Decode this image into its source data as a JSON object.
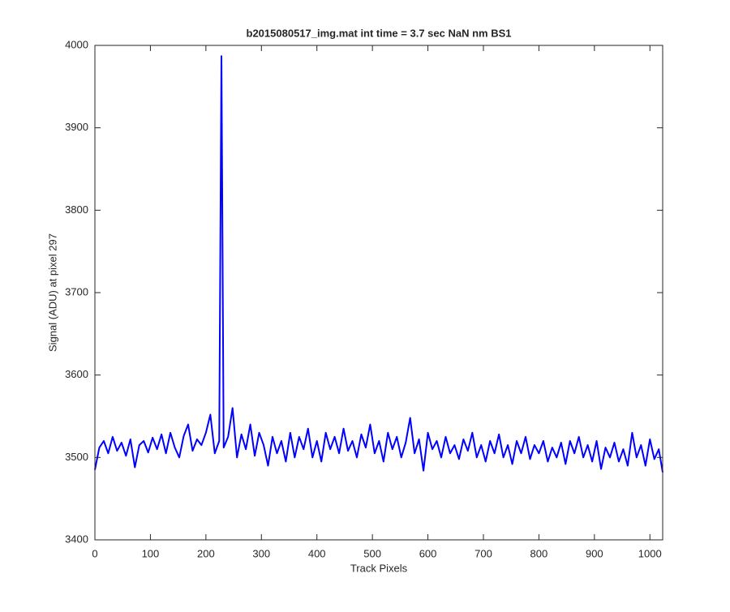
{
  "chart_data": {
    "type": "line",
    "title": "b2015080517_img.mat int time = 3.7 sec  NaN nm BS1",
    "xlabel": "Track Pixels",
    "ylabel": "Signal (ADU) at pixel 297",
    "xlim": [
      0,
      1023
    ],
    "ylim": [
      3400,
      4000
    ],
    "xticks": [
      0,
      100,
      200,
      300,
      400,
      500,
      600,
      700,
      800,
      900,
      1000
    ],
    "yticks": [
      3400,
      3500,
      3600,
      3700,
      3800,
      3900,
      4000
    ],
    "series": [
      {
        "color": "#0000ff",
        "x": [
          0,
          8,
          16,
          24,
          32,
          40,
          48,
          56,
          64,
          72,
          80,
          88,
          96,
          104,
          112,
          120,
          128,
          136,
          144,
          152,
          160,
          168,
          176,
          184,
          192,
          200,
          208,
          216,
          224,
          228,
          232,
          240,
          248,
          256,
          264,
          272,
          280,
          288,
          296,
          304,
          312,
          320,
          328,
          336,
          344,
          352,
          360,
          368,
          376,
          384,
          392,
          400,
          408,
          416,
          424,
          432,
          440,
          448,
          456,
          464,
          472,
          480,
          488,
          496,
          504,
          512,
          520,
          528,
          536,
          544,
          552,
          560,
          568,
          576,
          584,
          592,
          600,
          608,
          616,
          624,
          632,
          640,
          648,
          656,
          664,
          672,
          680,
          688,
          696,
          704,
          712,
          720,
          728,
          736,
          744,
          752,
          760,
          768,
          776,
          784,
          792,
          800,
          808,
          816,
          824,
          832,
          840,
          848,
          856,
          864,
          872,
          880,
          888,
          896,
          904,
          912,
          920,
          928,
          936,
          944,
          952,
          960,
          968,
          976,
          984,
          992,
          1000,
          1008,
          1016,
          1023
        ],
        "values": [
          3485,
          3512,
          3520,
          3505,
          3525,
          3508,
          3518,
          3502,
          3522,
          3488,
          3515,
          3520,
          3506,
          3524,
          3510,
          3528,
          3505,
          3530,
          3512,
          3500,
          3526,
          3540,
          3508,
          3522,
          3515,
          3530,
          3552,
          3505,
          3520,
          3987,
          3512,
          3525,
          3560,
          3500,
          3528,
          3510,
          3540,
          3502,
          3530,
          3515,
          3490,
          3525,
          3505,
          3520,
          3495,
          3530,
          3500,
          3525,
          3510,
          3535,
          3500,
          3520,
          3495,
          3530,
          3510,
          3525,
          3505,
          3535,
          3508,
          3520,
          3500,
          3528,
          3512,
          3540,
          3505,
          3520,
          3495,
          3530,
          3510,
          3525,
          3500,
          3518,
          3548,
          3505,
          3522,
          3484,
          3530,
          3510,
          3520,
          3500,
          3525,
          3505,
          3515,
          3498,
          3522,
          3508,
          3530,
          3500,
          3515,
          3495,
          3520,
          3505,
          3528,
          3500,
          3515,
          3492,
          3520,
          3505,
          3525,
          3498,
          3515,
          3505,
          3520,
          3495,
          3512,
          3500,
          3518,
          3492,
          3520,
          3505,
          3525,
          3500,
          3515,
          3495,
          3520,
          3486,
          3512,
          3500,
          3518,
          3495,
          3510,
          3490,
          3530,
          3500,
          3515,
          3490,
          3522,
          3498,
          3510,
          3482
        ]
      }
    ]
  }
}
